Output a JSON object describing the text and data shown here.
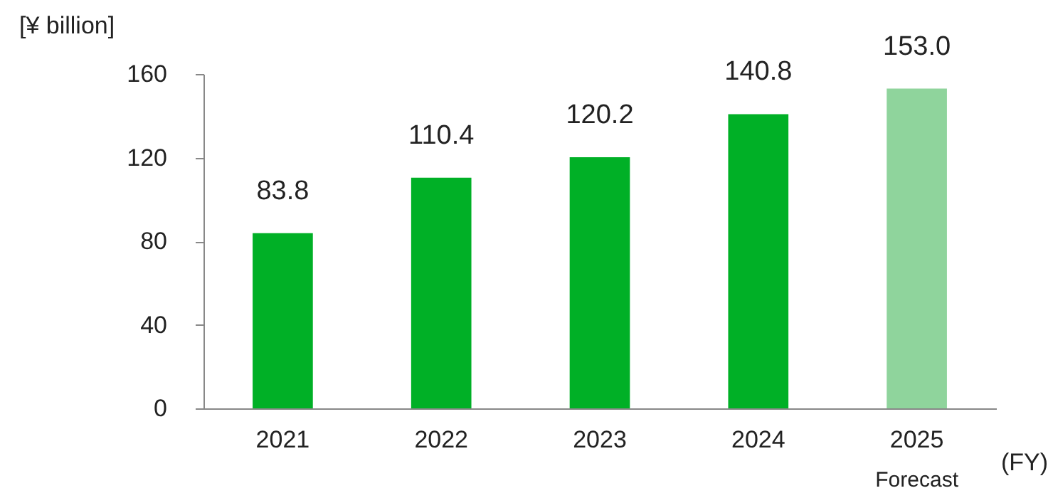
{
  "chart_data": {
    "type": "bar",
    "ylabel": "[¥ billion]",
    "xlabel": "(FY)",
    "categories": [
      "2021",
      "2022",
      "2023",
      "2024",
      "2025"
    ],
    "values": [
      83.8,
      110.4,
      120.2,
      140.8,
      153.0
    ],
    "value_labels": [
      "83.8",
      "110.4",
      "120.2",
      "140.8",
      "153.0"
    ],
    "colors": [
      "#00b026",
      "#00b026",
      "#00b026",
      "#00b026",
      "#8fd49c"
    ],
    "annotations": [
      "Forecast"
    ],
    "ylim": [
      0,
      160
    ],
    "yticks": [
      0,
      40,
      80,
      120,
      160
    ],
    "grid": false,
    "legend": false
  }
}
